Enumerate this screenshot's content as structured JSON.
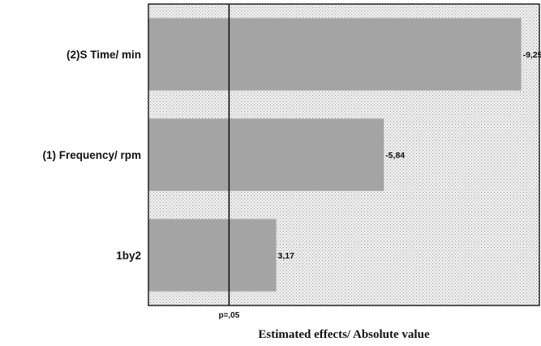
{
  "chart_data": {
    "type": "bar",
    "orientation": "horizontal",
    "title": "",
    "xlabel": "Estimated effects/ Absolute value",
    "ylabel": "",
    "categories": [
      "(2)S Time/ min",
      "(1) Frequency/ rpm",
      "1by2"
    ],
    "values": [
      9.25,
      5.84,
      3.17
    ],
    "value_labels": [
      "-9,25",
      "-5,84",
      "3,17"
    ],
    "xlim": [
      0,
      9.7
    ],
    "reference_line": {
      "value": 2.0,
      "label": "p=,05"
    },
    "grid": true,
    "legend": "none",
    "colors": {
      "bar": "#a4a4a4",
      "background": "#e6e6e6",
      "grid": "#b0b0b0",
      "axis": "#111111"
    }
  }
}
